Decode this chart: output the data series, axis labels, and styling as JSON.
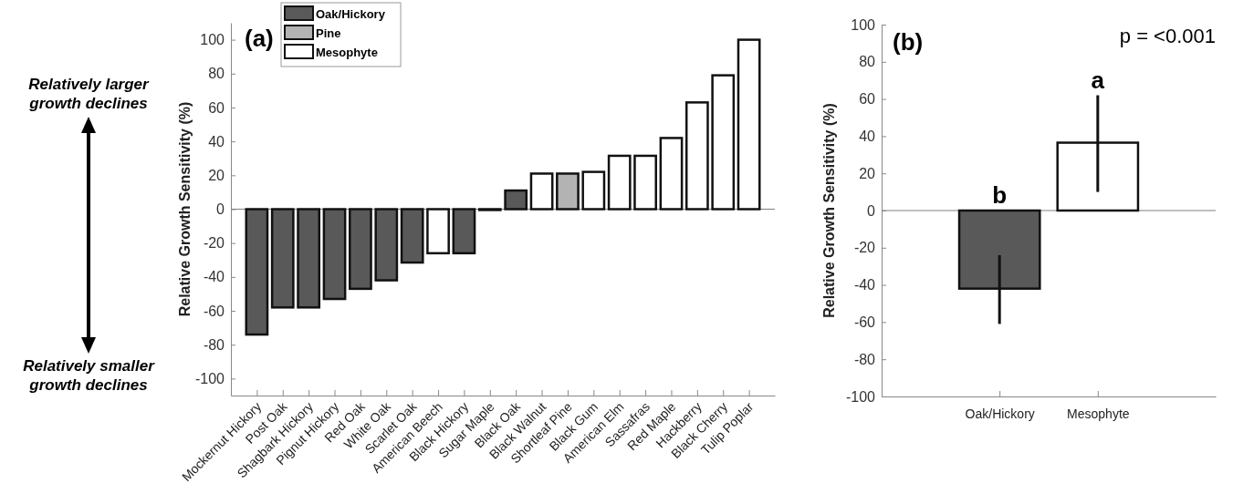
{
  "chart_data": [
    {
      "type": "bar",
      "title": "(a)",
      "ylabel": "Relative Growth Sensitivity (%)",
      "categories": [
        "Mockernut Hickory",
        "Post Oak",
        "Shagbark Hickory",
        "Pignut Hickory",
        "Red Oak",
        "White Oak",
        "Scarlet Oak",
        "American Beech",
        "Black Hickory",
        "Sugar Maple",
        "Black Oak",
        "Black Walnut",
        "Shortleaf Pine",
        "Black Gum",
        "American Elm",
        "Sassafras",
        "Red Maple",
        "Hackberry",
        "Black Cherry",
        "Tulip Poplar"
      ],
      "series": [
        {
          "name": "Oak/Hickory",
          "color": "#595959",
          "values": [
            -74,
            -58,
            -58,
            -53,
            -47,
            -42,
            -31.5,
            null,
            -26,
            null,
            11,
            null,
            null,
            null,
            null,
            null,
            null,
            null,
            null,
            null
          ]
        },
        {
          "name": "Pine",
          "color": "#b3b3b3",
          "values": [
            null,
            null,
            null,
            null,
            null,
            null,
            null,
            null,
            null,
            null,
            null,
            null,
            21,
            null,
            null,
            null,
            null,
            null,
            null,
            null
          ]
        },
        {
          "name": "Mesophyte",
          "color": "#ffffff",
          "values": [
            null,
            null,
            null,
            null,
            null,
            null,
            null,
            -26,
            null,
            -0.5,
            null,
            21,
            null,
            22,
            31.5,
            31.5,
            42,
            63,
            79,
            100
          ]
        }
      ],
      "ylim": [
        -110,
        110
      ],
      "yticks": [
        -100,
        -80,
        -60,
        -40,
        -20,
        0,
        20,
        40,
        60,
        80,
        100
      ],
      "ref_lines": [
        {
          "axis": "y",
          "value": 0,
          "color": "#808080"
        }
      ],
      "legend": "top left",
      "annotations": [
        "Relatively larger growth declines",
        "Relatively smaller growth declines"
      ]
    },
    {
      "type": "bar",
      "title": "(b)",
      "ylabel": "Relative Growth Sensitivity (%)",
      "categories": [
        "Oak/Hickory",
        "Mesophyte"
      ],
      "values": [
        -42,
        36.5
      ],
      "colors": [
        "#595959",
        "#ffffff"
      ],
      "errors": [
        [
          -61,
          -24
        ],
        [
          10,
          62
        ]
      ],
      "ylim": [
        -100,
        100
      ],
      "yticks": [
        -100,
        -80,
        -60,
        -40,
        -20,
        0,
        20,
        40,
        60,
        80,
        100
      ],
      "ref_lines": [
        {
          "axis": "y",
          "value": 0,
          "color": "#808080"
        }
      ],
      "annotations": [
        "p = <0.001",
        {
          "text": "b",
          "x": "Oak/Hickory",
          "y": 0
        },
        {
          "text": "a",
          "x": "Mesophyte",
          "y": 62
        }
      ]
    }
  ]
}
